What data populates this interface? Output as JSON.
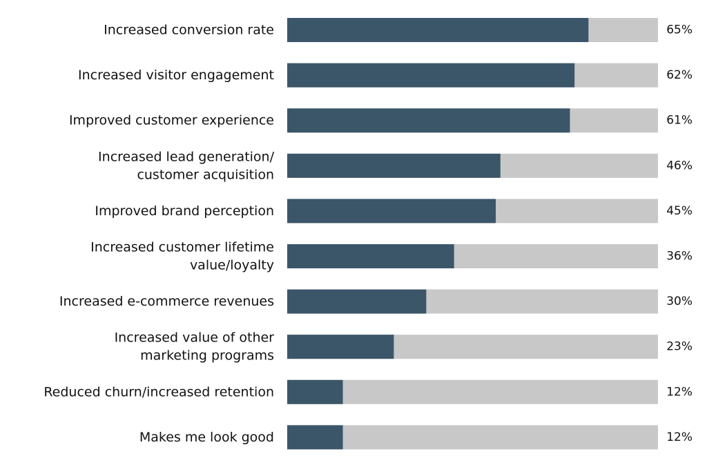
{
  "chart_data": {
    "type": "bar",
    "orientation": "horizontal",
    "categories": [
      [
        "Increased conversion rate"
      ],
      [
        "Increased visitor engagement"
      ],
      [
        "Improved customer experience"
      ],
      [
        "Increased lead generation/",
        "customer acquisition"
      ],
      [
        "Improved brand perception"
      ],
      [
        "Increased customer lifetime",
        "value/loyalty"
      ],
      [
        "Increased e-commerce revenues"
      ],
      [
        "Increased value of other",
        "marketing programs"
      ],
      [
        "Reduced churn/increased retention"
      ],
      [
        "Makes me look good"
      ]
    ],
    "values": [
      65,
      62,
      61,
      46,
      45,
      36,
      30,
      23,
      12,
      12
    ],
    "value_labels": [
      "65%",
      "62%",
      "61%",
      "46%",
      "45%",
      "36%",
      "30%",
      "23%",
      "12%",
      "12%"
    ],
    "xlim": [
      0,
      80
    ],
    "title": "",
    "xlabel": "",
    "ylabel": "",
    "grid": false,
    "legend": "none",
    "colors": {
      "bar": "#3b5669",
      "track": "#c8c8c8",
      "text": "#111111"
    }
  }
}
